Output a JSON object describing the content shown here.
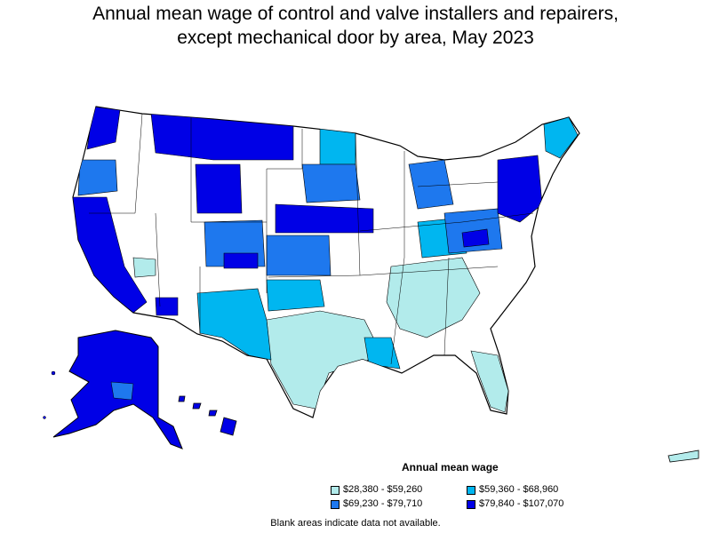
{
  "title_line1": "Annual mean wage of control and valve installers and repairers,",
  "title_line2": "except mechanical door by area, May 2023",
  "legend": {
    "title": "Annual mean wage",
    "items": [
      {
        "label": "$28,380 - $59,260",
        "color": "#b2ebeb"
      },
      {
        "label": "$59,360 - $68,960",
        "color": "#00b6f0"
      },
      {
        "label": "$69,230 - $79,710",
        "color": "#1e78ee"
      },
      {
        "label": "$79,840 - $107,070",
        "color": "#0000e6"
      }
    ]
  },
  "note": "Blank areas indicate data not available.",
  "colors": {
    "blank": "#ffffff",
    "border": "#000000",
    "low": "#b2ebeb",
    "mid_low": "#00b6f0",
    "mid_high": "#1e78ee",
    "high": "#0000e6"
  }
}
